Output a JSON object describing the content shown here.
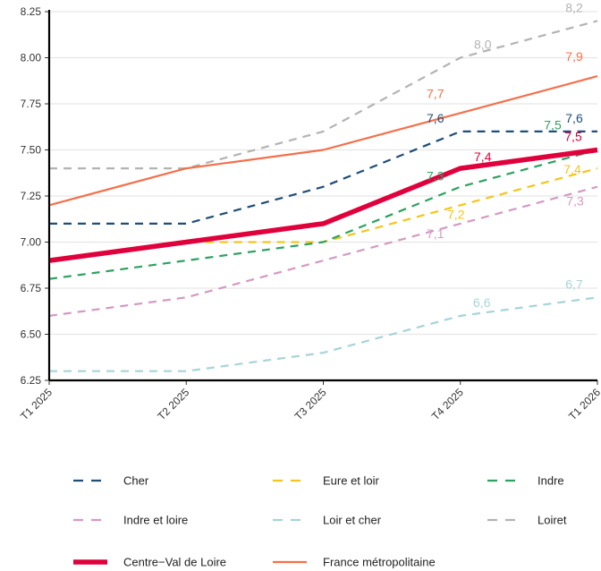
{
  "chart_data": {
    "type": "line",
    "title": "",
    "xlabel": "",
    "ylabel": "",
    "categories": [
      "T1 2025",
      "T2 2025",
      "T3 2025",
      "T4 2025",
      "T1 2026"
    ],
    "ylim": [
      6.25,
      8.25
    ],
    "yticks": [
      "6.25",
      "6.50",
      "6.75",
      "7.00",
      "7.25",
      "7.50",
      "7.75",
      "8.00",
      "8.25"
    ],
    "grid": "horizontal",
    "legend_position": "bottom",
    "series": [
      {
        "name": "Cher",
        "values": [
          7.1,
          7.1,
          7.3,
          7.6,
          7.6
        ],
        "color": "#1f4e79",
        "style": "dashed",
        "labels": [
          {
            "i": 3,
            "text": "7,6"
          },
          {
            "i": 4,
            "text": "7,6"
          }
        ]
      },
      {
        "name": "Eure et loir",
        "values": [
          6.9,
          7.0,
          7.0,
          7.2,
          7.4
        ],
        "color": "#f5c518",
        "style": "dashed",
        "labels": [
          {
            "i": 3,
            "text": "7,2"
          },
          {
            "i": 4,
            "text": "7,4"
          }
        ]
      },
      {
        "name": "Indre",
        "values": [
          6.8,
          6.9,
          7.0,
          7.3,
          7.5
        ],
        "color": "#2ca25f",
        "style": "dashed",
        "labels": [
          {
            "i": 3,
            "text": "7,3"
          },
          {
            "i": 4,
            "text": "7,5"
          }
        ]
      },
      {
        "name": "Indre et loire",
        "values": [
          6.6,
          6.7,
          6.9,
          7.1,
          7.3
        ],
        "color": "#d49ac3",
        "style": "dashed",
        "labels": [
          {
            "i": 3,
            "text": "7,1"
          },
          {
            "i": 4,
            "text": "7,3"
          }
        ]
      },
      {
        "name": "Loir et cher",
        "values": [
          6.3,
          6.3,
          6.4,
          6.6,
          6.7
        ],
        "color": "#a6d4d8",
        "style": "dashed",
        "labels": [
          {
            "i": 3,
            "text": "6,6"
          },
          {
            "i": 4,
            "text": "6,7"
          }
        ]
      },
      {
        "name": "Loiret",
        "values": [
          7.4,
          7.4,
          7.6,
          8.0,
          8.2
        ],
        "color": "#b3b3b3",
        "style": "dashed",
        "labels": [
          {
            "i": 3,
            "text": "8,0"
          },
          {
            "i": 4,
            "text": "8,2"
          }
        ]
      },
      {
        "name": "Centre−Val de Loire",
        "values": [
          6.9,
          7.0,
          7.1,
          7.4,
          7.5
        ],
        "color": "#e0003c",
        "style": "thick",
        "labels": [
          {
            "i": 3,
            "text": "7,4"
          },
          {
            "i": 4,
            "text": "7,5"
          }
        ]
      },
      {
        "name": "France métropolitaine",
        "values": [
          7.2,
          7.4,
          7.5,
          7.7,
          7.9
        ],
        "color": "#f4704b",
        "style": "solid",
        "labels": [
          {
            "i": 3,
            "text": "7,7"
          },
          {
            "i": 4,
            "text": "7,9"
          }
        ]
      }
    ]
  }
}
